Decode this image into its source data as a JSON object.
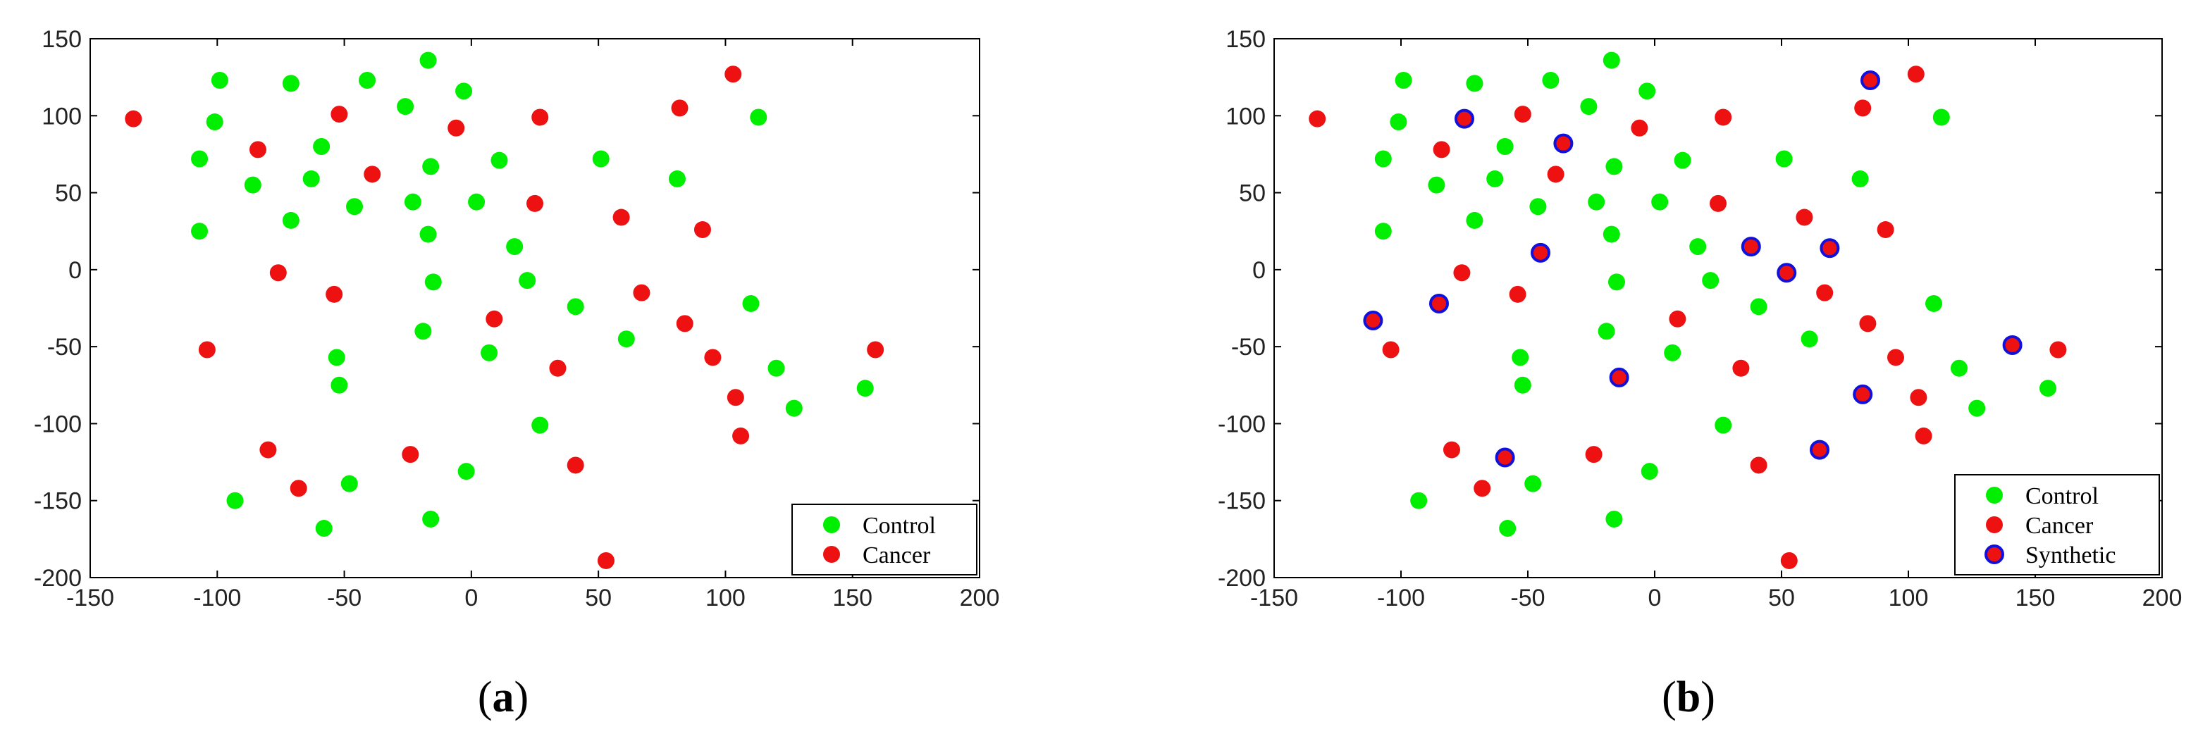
{
  "colors": {
    "control": "#00ee00",
    "cancer": "#ee1111",
    "synthetic_fill": "#ee1111",
    "synthetic_edge": "#1111dd",
    "axis": "#000000"
  },
  "chart_data": [
    {
      "type": "scatter",
      "caption_letter": "a",
      "xlim": [
        -150,
        200
      ],
      "ylim": [
        -200,
        150
      ],
      "xticks": [
        "-150",
        "-100",
        "-50",
        "0",
        "50",
        "100",
        "150",
        "200"
      ],
      "yticks": [
        "150",
        "100",
        "50",
        "0",
        "-50",
        "-100",
        "-150",
        "-200"
      ],
      "legend": {
        "position": "bottom-right",
        "entries": [
          "Control",
          "Cancer"
        ]
      },
      "series": [
        {
          "name": "Control",
          "points": [
            [
              -99,
              123
            ],
            [
              -101,
              96
            ],
            [
              -107,
              72
            ],
            [
              -107,
              25
            ],
            [
              -71,
              121
            ],
            [
              -59,
              80
            ],
            [
              -63,
              59
            ],
            [
              -86,
              55
            ],
            [
              -71,
              32
            ],
            [
              -41,
              123
            ],
            [
              -26,
              106
            ],
            [
              -17,
              136
            ],
            [
              -16,
              67
            ],
            [
              -23,
              44
            ],
            [
              -17,
              23
            ],
            [
              -15,
              -8
            ],
            [
              -3,
              116
            ],
            [
              2,
              44
            ],
            [
              11,
              71
            ],
            [
              17,
              15
            ],
            [
              22,
              -7
            ],
            [
              41,
              -24
            ],
            [
              51,
              72
            ],
            [
              61,
              -45
            ],
            [
              81,
              59
            ],
            [
              110,
              -22
            ],
            [
              113,
              99
            ],
            [
              120,
              -64
            ],
            [
              127,
              -90
            ],
            [
              155,
              -77
            ],
            [
              -53,
              -57
            ],
            [
              -52,
              -75
            ],
            [
              -19,
              -40
            ],
            [
              7,
              -54
            ],
            [
              27,
              -101
            ],
            [
              -93,
              -150
            ],
            [
              -58,
              -168
            ],
            [
              -48,
              -139
            ],
            [
              -16,
              -162
            ],
            [
              -2,
              -131
            ],
            [
              -46,
              41
            ]
          ]
        },
        {
          "name": "Cancer",
          "points": [
            [
              -133,
              98
            ],
            [
              -84,
              78
            ],
            [
              -52,
              101
            ],
            [
              -39,
              62
            ],
            [
              -6,
              92
            ],
            [
              25,
              43
            ],
            [
              27,
              99
            ],
            [
              59,
              34
            ],
            [
              82,
              105
            ],
            [
              103,
              127
            ],
            [
              -76,
              -2
            ],
            [
              -54,
              -16
            ],
            [
              -104,
              -52
            ],
            [
              9,
              -32
            ],
            [
              34,
              -64
            ],
            [
              67,
              -15
            ],
            [
              84,
              -35
            ],
            [
              91,
              26
            ],
            [
              95,
              -57
            ],
            [
              104,
              -83
            ],
            [
              106,
              -108
            ],
            [
              159,
              -52
            ],
            [
              -80,
              -117
            ],
            [
              -68,
              -142
            ],
            [
              -24,
              -120
            ],
            [
              41,
              -127
            ],
            [
              53,
              -189
            ]
          ]
        }
      ]
    },
    {
      "type": "scatter",
      "caption_letter": "b",
      "xlim": [
        -150,
        200
      ],
      "ylim": [
        -200,
        150
      ],
      "xticks": [
        "-150",
        "-100",
        "-50",
        "0",
        "50",
        "100",
        "150",
        "200"
      ],
      "yticks": [
        "150",
        "100",
        "50",
        "0",
        "-50",
        "-100",
        "-150",
        "-200"
      ],
      "legend": {
        "position": "bottom-right",
        "entries": [
          "Control",
          "Cancer",
          "Synthetic"
        ]
      },
      "series": [
        {
          "name": "Control",
          "points": [
            [
              -99,
              123
            ],
            [
              -101,
              96
            ],
            [
              -107,
              72
            ],
            [
              -107,
              25
            ],
            [
              -71,
              121
            ],
            [
              -59,
              80
            ],
            [
              -63,
              59
            ],
            [
              -86,
              55
            ],
            [
              -71,
              32
            ],
            [
              -41,
              123
            ],
            [
              -26,
              106
            ],
            [
              -17,
              136
            ],
            [
              -16,
              67
            ],
            [
              -23,
              44
            ],
            [
              -17,
              23
            ],
            [
              -15,
              -8
            ],
            [
              -3,
              116
            ],
            [
              2,
              44
            ],
            [
              11,
              71
            ],
            [
              17,
              15
            ],
            [
              22,
              -7
            ],
            [
              41,
              -24
            ],
            [
              51,
              72
            ],
            [
              61,
              -45
            ],
            [
              81,
              59
            ],
            [
              110,
              -22
            ],
            [
              113,
              99
            ],
            [
              120,
              -64
            ],
            [
              127,
              -90
            ],
            [
              155,
              -77
            ],
            [
              -53,
              -57
            ],
            [
              -52,
              -75
            ],
            [
              -19,
              -40
            ],
            [
              7,
              -54
            ],
            [
              27,
              -101
            ],
            [
              -93,
              -150
            ],
            [
              -58,
              -168
            ],
            [
              -48,
              -139
            ],
            [
              -16,
              -162
            ],
            [
              -2,
              -131
            ],
            [
              -46,
              41
            ]
          ]
        },
        {
          "name": "Cancer",
          "points": [
            [
              -133,
              98
            ],
            [
              -84,
              78
            ],
            [
              -52,
              101
            ],
            [
              -39,
              62
            ],
            [
              -6,
              92
            ],
            [
              25,
              43
            ],
            [
              27,
              99
            ],
            [
              59,
              34
            ],
            [
              82,
              105
            ],
            [
              103,
              127
            ],
            [
              -76,
              -2
            ],
            [
              -54,
              -16
            ],
            [
              -104,
              -52
            ],
            [
              9,
              -32
            ],
            [
              34,
              -64
            ],
            [
              67,
              -15
            ],
            [
              84,
              -35
            ],
            [
              91,
              26
            ],
            [
              95,
              -57
            ],
            [
              104,
              -83
            ],
            [
              106,
              -108
            ],
            [
              159,
              -52
            ],
            [
              -80,
              -117
            ],
            [
              -68,
              -142
            ],
            [
              -24,
              -120
            ],
            [
              41,
              -127
            ],
            [
              53,
              -189
            ]
          ]
        },
        {
          "name": "Synthetic",
          "points": [
            [
              -75,
              98
            ],
            [
              -36,
              82
            ],
            [
              85,
              123
            ],
            [
              -45,
              11
            ],
            [
              38,
              15
            ],
            [
              52,
              -2
            ],
            [
              69,
              14
            ],
            [
              -111,
              -33
            ],
            [
              -85,
              -22
            ],
            [
              -14,
              -70
            ],
            [
              82,
              -81
            ],
            [
              141,
              -49
            ],
            [
              -59,
              -122
            ],
            [
              65,
              -117
            ]
          ]
        }
      ]
    }
  ]
}
